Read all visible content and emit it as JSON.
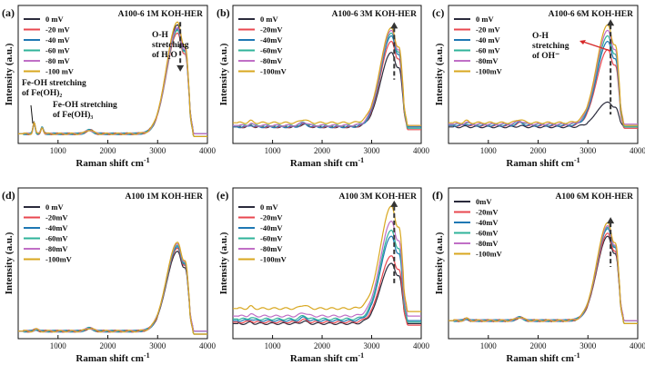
{
  "x_axis_label": "Raman shift cm",
  "x_axis_label_sup": "-1",
  "y_axis_label": "Intensity (a.u.)",
  "chart_data": [
    {
      "type": "line",
      "label": "(a)",
      "title": "A100-6  1M KOH-HER",
      "xlim": [
        200,
        4000
      ],
      "xticks": [
        1000,
        2000,
        3000,
        4000
      ],
      "xtick_labels": [
        "1000",
        "2000",
        "3000",
        "4000"
      ],
      "legend_labels": [
        "0  mV",
        "-20 mV",
        "-40 mV",
        "-60 mV",
        "-80 mV",
        "-100 mV"
      ],
      "series_peak_heights": [
        0.86,
        0.8,
        0.83,
        0.82,
        0.84,
        0.88
      ],
      "series_baselines": [
        0.07,
        0.07,
        0.07,
        0.07,
        0.07,
        0.07
      ],
      "peak_center": 3400,
      "peak_arrow": "down",
      "annotations": [
        {
          "lines": [
            "O-H",
            "stretching",
            "of H₂O"
          ]
        },
        {
          "lines": [
            "Fe-OH  stretching",
            "of Fe(OH)₂"
          ]
        },
        {
          "lines": [
            "Fe-OH  stretching",
            "of Fe(OH)₃"
          ]
        }
      ]
    },
    {
      "type": "line",
      "label": "(b)",
      "title": "A100-6  3M KOH-HER",
      "xlim": [
        200,
        4000
      ],
      "xticks": [
        1000,
        2000,
        3000,
        4000
      ],
      "xtick_labels": [
        "1000",
        "2000",
        "3000",
        "4000"
      ],
      "legend_labels": [
        "0 mV",
        "-20mV",
        "-40mV",
        "-60mV",
        "-80mV",
        "-100mV"
      ],
      "series_peak_heights": [
        0.66,
        0.74,
        0.78,
        0.8,
        0.82,
        0.84
      ],
      "series_baselines": [
        0.12,
        0.12,
        0.12,
        0.13,
        0.13,
        0.15
      ],
      "peak_center": 3400,
      "peak_arrow": "up",
      "annotations": []
    },
    {
      "type": "line",
      "label": "(c)",
      "title": "A100-6  6M KOH-HER",
      "xlim": [
        200,
        4000
      ],
      "xticks": [
        1000,
        2000,
        3000,
        4000
      ],
      "xtick_labels": [
        "1000",
        "2000",
        "3000",
        "4000"
      ],
      "legend_labels": [
        "0 mV",
        "-20 mV",
        "-40 mV",
        "-60  mV",
        "-80mV",
        "-100mV"
      ],
      "series_peak_heights": [
        0.3,
        0.68,
        0.74,
        0.78,
        0.82,
        0.86
      ],
      "series_baselines": [
        0.12,
        0.13,
        0.13,
        0.14,
        0.14,
        0.15
      ],
      "peak_center": 3400,
      "peak_arrow": "up",
      "annotations": [
        {
          "lines": [
            "O-H",
            "stretching",
            "of OH⁻"
          ]
        }
      ]
    },
    {
      "type": "line",
      "label": "(d)",
      "title": "A100 1M KOH-HER",
      "xlim": [
        200,
        4000
      ],
      "xticks": [
        1000,
        2000,
        3000,
        4000
      ],
      "xtick_labels": [
        "1000",
        "2000",
        "3000",
        "4000"
      ],
      "legend_labels": [
        "0 mV",
        "-20mV",
        "-40mV",
        "-60mV",
        "-80mV",
        "-100mV"
      ],
      "series_peak_heights": [
        0.58,
        0.6,
        0.61,
        0.62,
        0.63,
        0.64
      ],
      "series_baselines": [
        0.05,
        0.05,
        0.05,
        0.05,
        0.05,
        0.05
      ],
      "peak_center": 3400,
      "peak_arrow": "none",
      "annotations": []
    },
    {
      "type": "line",
      "label": "(e)",
      "title": "A100 3M KOH-HER",
      "xlim": [
        200,
        4000
      ],
      "xticks": [
        1000,
        2000,
        3000,
        4000
      ],
      "xtick_labels": [
        "1000",
        "2000",
        "3000",
        "4000"
      ],
      "legend_labels": [
        "0 mV",
        "-20mV",
        "-40mV",
        "-60mV",
        "-80mV",
        "-100mV"
      ],
      "series_peak_heights": [
        0.5,
        0.55,
        0.68,
        0.72,
        0.78,
        0.88
      ],
      "series_baselines": [
        0.1,
        0.11,
        0.12,
        0.13,
        0.15,
        0.2
      ],
      "peak_center": 3400,
      "peak_arrow": "up",
      "annotations": []
    },
    {
      "type": "line",
      "label": "(f)",
      "title": "A100 6M KOH-HER",
      "xlim": [
        200,
        4000
      ],
      "xticks": [
        1000,
        2000,
        3000,
        4000
      ],
      "xtick_labels": [
        "1000",
        "2000",
        "3000",
        "4000"
      ],
      "legend_labels": [
        "0mV",
        "-20mV",
        "-40mV",
        "-60mV",
        "-80mV",
        "-100mV"
      ],
      "series_peak_heights": [
        0.68,
        0.7,
        0.73,
        0.74,
        0.75,
        0.77
      ],
      "series_baselines": [
        0.12,
        0.12,
        0.12,
        0.12,
        0.12,
        0.12
      ],
      "peak_center": 3400,
      "peak_arrow": "up",
      "annotations": []
    }
  ],
  "series_colors": [
    "#2b2b3c",
    "#e8474f",
    "#1f78b4",
    "#2fb39a",
    "#c06fc6",
    "#d8a71f"
  ]
}
